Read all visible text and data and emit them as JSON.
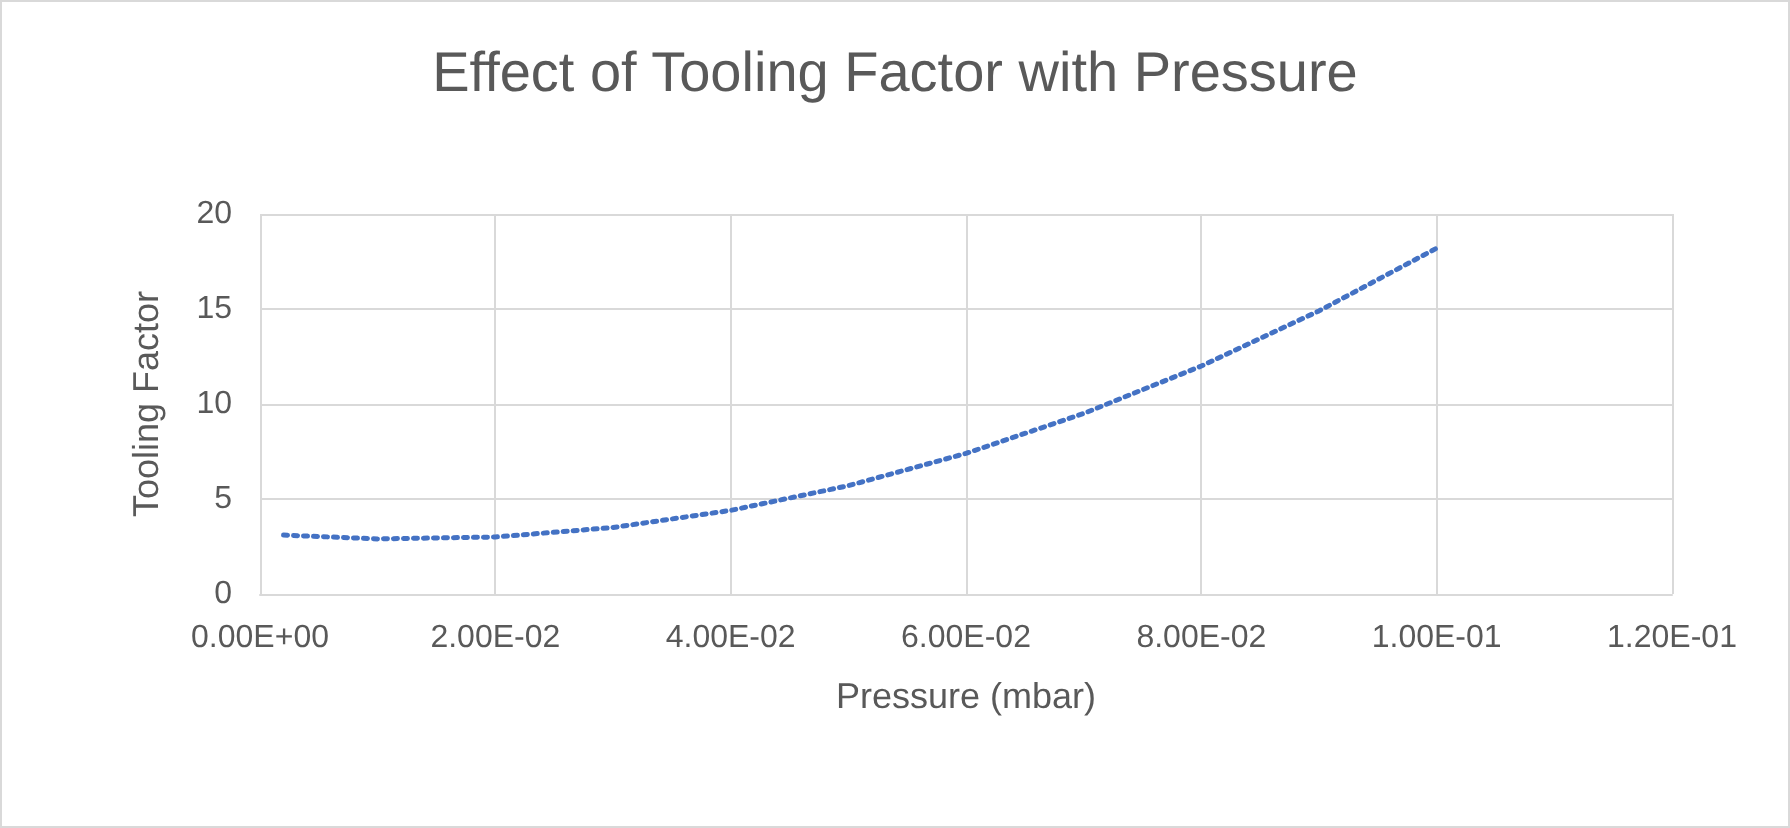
{
  "chart_data": {
    "type": "line",
    "title": "Effect of Tooling Factor with Pressure",
    "xlabel": "Pressure (mbar)",
    "ylabel": "Tooling Factor",
    "x": [
      0.002,
      0.01,
      0.02,
      0.03,
      0.04,
      0.05,
      0.06,
      0.07,
      0.08,
      0.09,
      0.1
    ],
    "series": [
      {
        "color": "#4472c4",
        "values": [
          3.1,
          2.9,
          3.0,
          3.5,
          4.4,
          5.7,
          7.4,
          9.5,
          12.0,
          14.9,
          18.2
        ]
      }
    ],
    "xlim": [
      0,
      0.12
    ],
    "xticks": [
      {
        "value": 0,
        "label": "0.00E+00"
      },
      {
        "value": 0.02,
        "label": "2.00E-02"
      },
      {
        "value": 0.04,
        "label": "4.00E-02"
      },
      {
        "value": 0.06,
        "label": "6.00E-02"
      },
      {
        "value": 0.08,
        "label": "8.00E-02"
      },
      {
        "value": 0.1,
        "label": "1.00E-01"
      },
      {
        "value": 0.12,
        "label": "1.20E-01"
      }
    ],
    "ylim": [
      0,
      20
    ],
    "yticks": [
      0,
      5,
      10,
      15,
      20
    ],
    "grid": true,
    "marker": "none",
    "line_style": "dotted"
  }
}
